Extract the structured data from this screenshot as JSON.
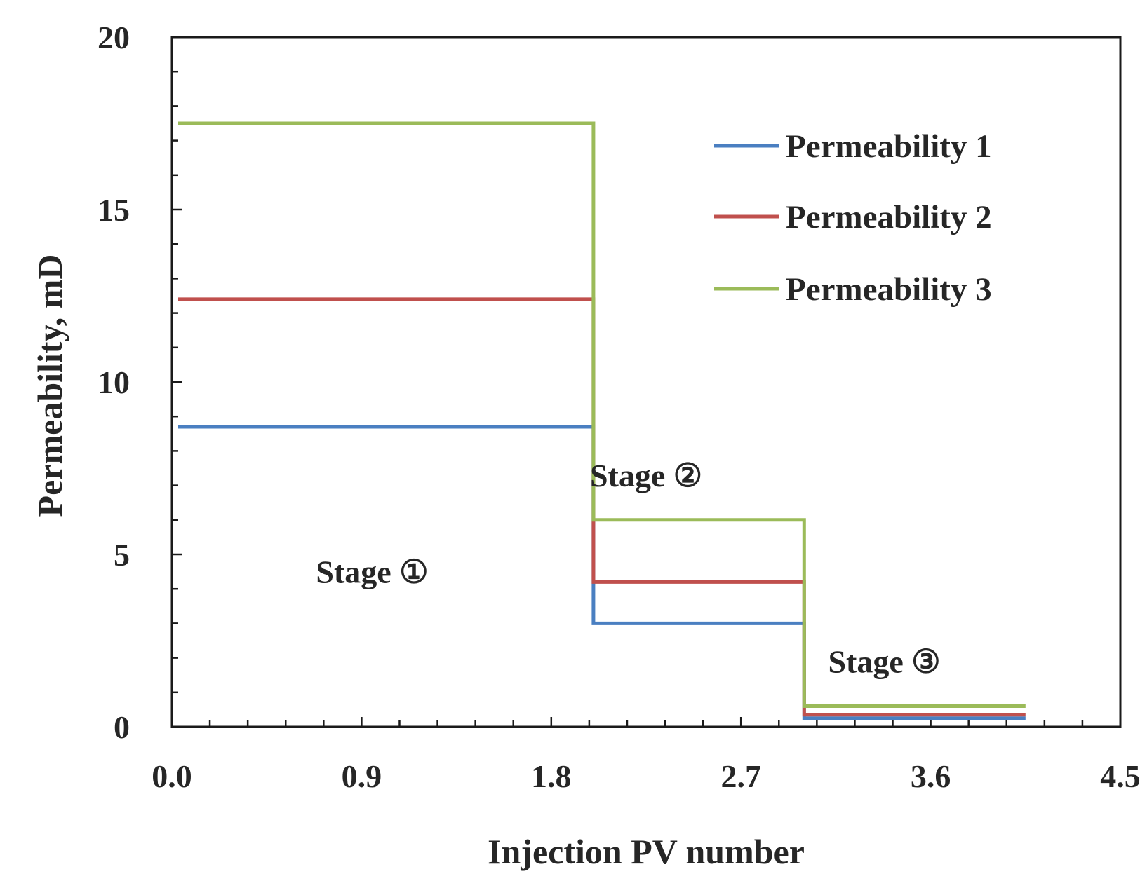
{
  "chart_data": {
    "type": "line",
    "step": true,
    "title": "",
    "xlabel": "Injection PV number",
    "ylabel": "Permeability, mD",
    "xlim": [
      0,
      4.5
    ],
    "ylim": [
      0,
      20
    ],
    "xticks": [
      0.0,
      0.9,
      1.8,
      2.7,
      3.6,
      4.5
    ],
    "xtick_labels": [
      "0.0",
      "0.9",
      "1.8",
      "2.7",
      "3.6",
      "4.5"
    ],
    "yticks": [
      0,
      5,
      10,
      15,
      20
    ],
    "ytick_labels": [
      "0",
      "5",
      "10",
      "15",
      "20"
    ],
    "x_minor_step": 0.18,
    "y_minor_step": 1,
    "grid": false,
    "legend_position": "top-right",
    "series": [
      {
        "name": "Permeability 1",
        "color": "#4a7fc1",
        "x": [
          0.03,
          2.0,
          2.0,
          3.0,
          3.0,
          4.05
        ],
        "y": [
          8.7,
          8.7,
          3.0,
          3.0,
          0.25,
          0.25
        ]
      },
      {
        "name": "Permeability 2",
        "color": "#c0504d",
        "x": [
          0.03,
          2.0,
          2.0,
          3.0,
          3.0,
          4.05
        ],
        "y": [
          12.4,
          12.4,
          4.2,
          4.2,
          0.35,
          0.35
        ]
      },
      {
        "name": "Permeability 3",
        "color": "#9bbb59",
        "x": [
          0.03,
          2.0,
          2.0,
          3.0,
          3.0,
          4.05
        ],
        "y": [
          17.5,
          17.5,
          6.0,
          6.0,
          0.6,
          0.6
        ]
      }
    ],
    "annotations": [
      {
        "text": "Stage ①",
        "x": 0.95,
        "y": 4.5
      },
      {
        "text": "Stage ②",
        "x": 2.25,
        "y": 7.3
      },
      {
        "text": "Stage ③",
        "x": 3.38,
        "y": 1.9
      }
    ]
  }
}
